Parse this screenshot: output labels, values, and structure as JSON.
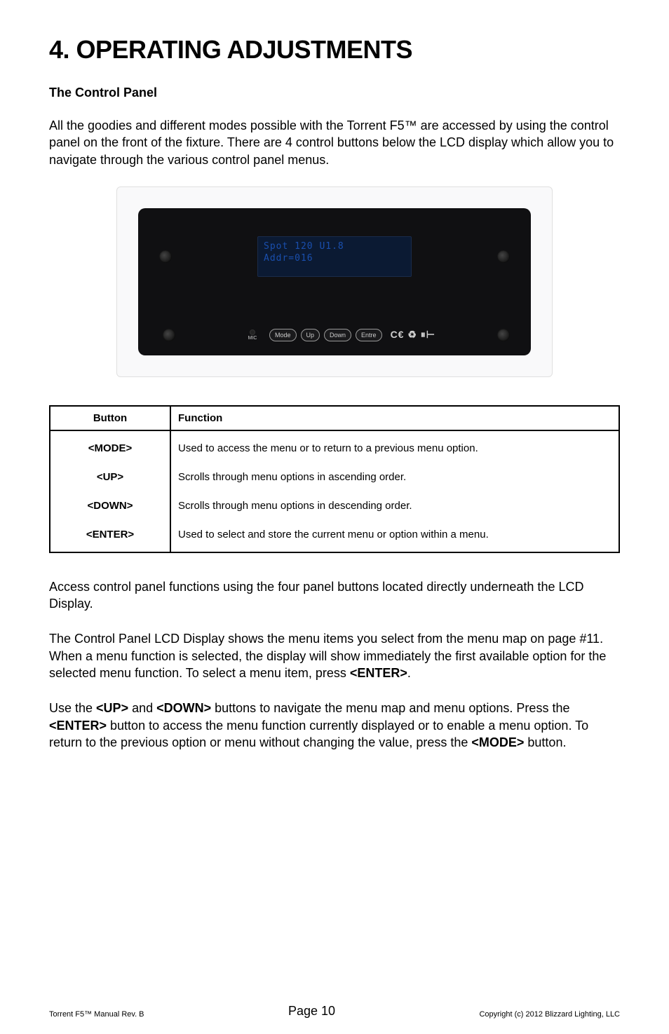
{
  "title": "4. OPERATING ADJUSTMENTS",
  "section_heading": "The Control Panel",
  "intro_para": "All the goodies and different modes possible with the Torrent F5™ are accessed by using the control panel on the front of the fixture.  There are 4 control buttons below the LCD display which allow you to navigate through the various control panel menus.",
  "figure": {
    "lcd_line1": "Spot 120 U1.8",
    "lcd_line2": "Addr=016",
    "mic_label": "MIC",
    "buttons": [
      "Mode",
      "Up",
      "Down",
      "Entre"
    ],
    "symbols": "C€ ♻ ⏸⊢"
  },
  "table": {
    "headers": [
      "Button",
      "Function"
    ],
    "rows": [
      {
        "btn": "<MODE>",
        "fn": "Used to access the menu or to return to a previous menu option."
      },
      {
        "btn": "<UP>",
        "fn": "Scrolls through menu options in ascending order."
      },
      {
        "btn": "<DOWN>",
        "fn": "Scrolls through menu options in descending order."
      },
      {
        "btn": "<ENTER>",
        "fn": "Used to select and store the current menu or option within a menu."
      }
    ]
  },
  "para2": "Access control panel functions using the four panel buttons located directly underneath the LCD Display.",
  "para3_a": "The Control Panel LCD Display shows the menu items you select from the menu map on page #11. When a menu function is selected, the display will show immediately the first available option for the selected menu function. To select a menu item, press ",
  "para3_b": "<ENTER>",
  "para3_c": ".",
  "para4_parts": [
    {
      "t": "Use the ",
      "b": false
    },
    {
      "t": "<UP>",
      "b": true
    },
    {
      "t": " and ",
      "b": false
    },
    {
      "t": "<DOWN>",
      "b": true
    },
    {
      "t": " buttons to navigate the menu map and menu options. Press the ",
      "b": false
    },
    {
      "t": "<ENTER>",
      "b": true
    },
    {
      "t": " button to access the menu function currently displayed or to enable a menu option. To return to the previous option or menu without changing the value, press the ",
      "b": false
    },
    {
      "t": "<MODE>",
      "b": true
    },
    {
      "t": " button.",
      "b": false
    }
  ],
  "footer": {
    "left": "Torrent F5™ Manual Rev. B",
    "center": "Page 10",
    "right": "Copyright (c) 2012 Blizzard Lighting, LLC"
  },
  "colors": {
    "page_bg": "#ffffff",
    "text": "#000000",
    "panel_body": "#101012",
    "lcd_bg": "#0b1a33",
    "lcd_text": "#1a4fae",
    "btn_border": "#999999",
    "btn_text": "#cccccc"
  },
  "typography": {
    "title_fontsize_pt": 27,
    "subhead_fontsize_pt": 14,
    "body_fontsize_pt": 14,
    "table_fontsize_pt": 11,
    "footer_small_fontsize_pt": 8,
    "footer_center_fontsize_pt": 14
  }
}
